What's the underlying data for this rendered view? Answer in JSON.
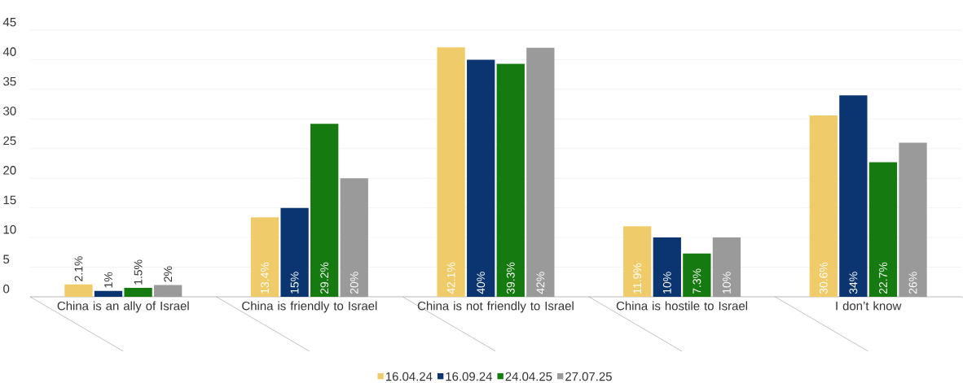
{
  "chart_data": {
    "type": "bar",
    "categories": [
      "China is an ally of Israel",
      "China is friendly to Israel",
      "China is not friendly to Israel",
      "China is hostile to Israel",
      "I don’t know"
    ],
    "series": [
      {
        "name": "16.04.24",
        "color": "#f0cb69",
        "values": [
          2.1,
          13.4,
          42.1,
          11.9,
          30.6
        ],
        "value_labels": [
          "2.1%",
          "13.4%",
          "42.1%",
          "11.9%",
          "30.6%"
        ]
      },
      {
        "name": "16.09.24",
        "color": "#0a3570",
        "values": [
          1,
          15,
          40,
          10,
          34
        ],
        "value_labels": [
          "1%",
          "15%",
          "40%",
          "10%",
          "34%"
        ]
      },
      {
        "name": "24.04.25",
        "color": "#157a0f",
        "values": [
          1.5,
          29.2,
          39.3,
          7.3,
          22.7
        ],
        "value_labels": [
          "1.5%",
          "29.2%",
          "39.3%",
          "7.3%",
          "22.7%"
        ]
      },
      {
        "name": "27.07.25",
        "color": "#9a9a9a",
        "values": [
          2,
          20,
          42,
          10,
          26
        ],
        "value_labels": [
          "2%",
          "20%",
          "42%",
          "10%",
          "26%"
        ]
      }
    ],
    "ylim": [
      0,
      45
    ],
    "yticks": [
      0,
      5,
      10,
      15,
      20,
      25,
      30,
      35,
      40,
      45
    ],
    "grid": "y",
    "legend": "bottom"
  }
}
